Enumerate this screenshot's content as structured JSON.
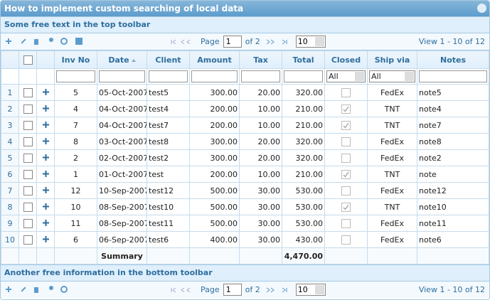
{
  "title": "How to implement custom searching of local data",
  "top_toolbar": "Some free text in the top toolbar",
  "pager": {
    "page_label": "Page",
    "page": "1",
    "of_pages": "of 2",
    "rows_per_page": "10",
    "view_info": "View 1 - 10 of 12"
  },
  "table": {
    "headers": [
      "Inv No",
      "Date",
      "Client",
      "Amount",
      "Tax",
      "Total",
      "Closed",
      "Ship via",
      "Notes"
    ],
    "filters": {
      "closed": "All",
      "ship_via": "All"
    },
    "rows": [
      [
        "1",
        "5",
        "05-Oct-2007",
        "test5",
        "300.00",
        "20.00",
        "320.00",
        false,
        "FedEx",
        "note5"
      ],
      [
        "2",
        "4",
        "04-Oct-2007",
        "test4",
        "200.00",
        "10.00",
        "210.00",
        true,
        "TNT",
        "note4"
      ],
      [
        "3",
        "7",
        "04-Oct-2007",
        "test7",
        "200.00",
        "10.00",
        "210.00",
        true,
        "TNT",
        "note7"
      ],
      [
        "4",
        "8",
        "03-Oct-2007",
        "test8",
        "300.00",
        "20.00",
        "320.00",
        false,
        "FedEx",
        "note8"
      ],
      [
        "5",
        "2",
        "02-Oct-2007",
        "test2",
        "300.00",
        "20.00",
        "320.00",
        false,
        "FedEx",
        "note2"
      ],
      [
        "6",
        "1",
        "01-Oct-2007",
        "test",
        "200.00",
        "10.00",
        "210.00",
        true,
        "TNT",
        "note"
      ],
      [
        "7",
        "12",
        "10-Sep-2007",
        "test12",
        "500.00",
        "30.00",
        "530.00",
        false,
        "FedEx",
        "note12"
      ],
      [
        "8",
        "10",
        "08-Sep-2007",
        "test10",
        "500.00",
        "30.00",
        "530.00",
        true,
        "TNT",
        "note10"
      ],
      [
        "9",
        "11",
        "08-Sep-2007",
        "test11",
        "500.00",
        "30.00",
        "530.00",
        false,
        "FedEx",
        "note11"
      ],
      [
        "10",
        "6",
        "06-Sep-2007",
        "test6",
        "400.00",
        "30.00",
        "430.00",
        false,
        "FedEx",
        "note6"
      ]
    ],
    "footer": {
      "label": "Summary",
      "total": "4,470.00"
    }
  },
  "bottom_toolbar": "Another free information in the bottom toolbar"
}
